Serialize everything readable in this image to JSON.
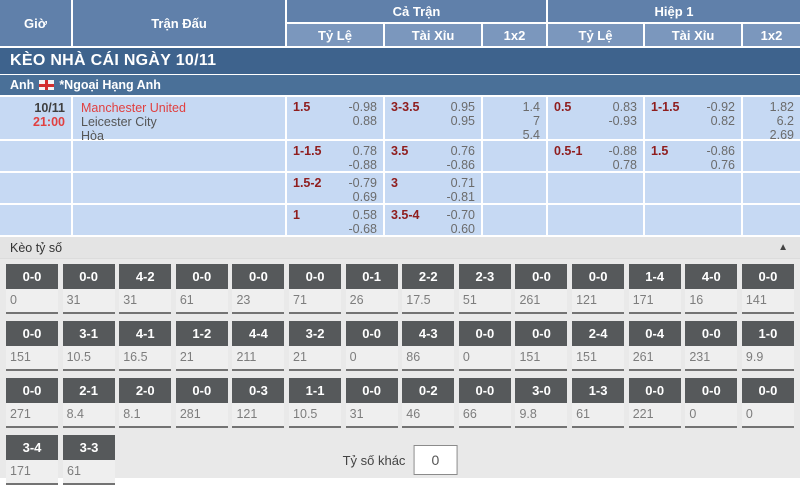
{
  "colors": {
    "accent_red": "#e14040",
    "handicap_maroon": "#8f1d1d",
    "header_blue": "#6080aa",
    "row_blue": "#c6d9f3",
    "banner_blue": "#3e638d",
    "tile_dark": "#56595b"
  },
  "odds_board": {
    "columns": {
      "time": "Giờ",
      "match": "Trận Đấu",
      "full_time": "Cả Trận",
      "first_half": "Hiệp 1",
      "sub_hdp": "Tỷ Lệ",
      "sub_ou": "Tài Xỉu",
      "sub_1x2": "1x2"
    },
    "day_banner": "KÈO NHÀ CÁI NGÀY 10/11",
    "league_bar": {
      "country": "Anh",
      "league": "*Ngoại Hạng Anh"
    },
    "match": {
      "date": "10/11",
      "kickoff": "21:00",
      "home": "Manchester United",
      "away": "Leicester City",
      "draw_label": "Hòa"
    },
    "rows": [
      {
        "ft_hdp_line": "1.5",
        "ft_hdp_odds": [
          "-0.98",
          "0.88"
        ],
        "ft_ou_line": "3-3.5",
        "ft_ou_odds": [
          "0.95",
          "0.95"
        ],
        "ft_1x2": [
          "1.4",
          "7",
          "5.4"
        ],
        "h1_hdp_line": "0.5",
        "h1_hdp_odds": [
          "0.83",
          "-0.93"
        ],
        "h1_ou_line": "1-1.5",
        "h1_ou_odds": [
          "-0.92",
          "0.82"
        ],
        "h1_1x2": [
          "1.82",
          "6.2",
          "2.69"
        ]
      },
      {
        "ft_hdp_line": "1-1.5",
        "ft_hdp_odds": [
          "0.78",
          "-0.88"
        ],
        "ft_ou_line": "3.5",
        "ft_ou_odds": [
          "0.76",
          "-0.86"
        ],
        "ft_1x2": [],
        "h1_hdp_line": "0.5-1",
        "h1_hdp_odds": [
          "-0.88",
          "0.78"
        ],
        "h1_ou_line": "1.5",
        "h1_ou_odds": [
          "-0.86",
          "0.76"
        ],
        "h1_1x2": []
      },
      {
        "ft_hdp_line": "1.5-2",
        "ft_hdp_odds": [
          "-0.79",
          "0.69"
        ],
        "ft_ou_line": "3",
        "ft_ou_odds": [
          "0.71",
          "-0.81"
        ],
        "ft_1x2": [],
        "h1_hdp_line": "",
        "h1_hdp_odds": [],
        "h1_ou_line": "",
        "h1_ou_odds": [],
        "h1_1x2": []
      },
      {
        "ft_hdp_line": "1",
        "ft_hdp_odds": [
          "0.58",
          "-0.68"
        ],
        "ft_ou_line": "3.5-4",
        "ft_ou_odds": [
          "-0.70",
          "0.60"
        ],
        "ft_1x2": [],
        "h1_hdp_line": "",
        "h1_hdp_odds": [],
        "h1_ou_line": "",
        "h1_ou_odds": [],
        "h1_1x2": []
      }
    ]
  },
  "score_section": {
    "title": "Kèo tỷ số",
    "collapse_icon": "▲",
    "other_score_label": "Tỷ số khác",
    "other_score_value": "0",
    "rows": [
      [
        {
          "score": "0-0",
          "value": "0"
        },
        {
          "score": "0-0",
          "value": "31"
        },
        {
          "score": "4-2",
          "value": "31"
        },
        {
          "score": "0-0",
          "value": "61"
        },
        {
          "score": "0-0",
          "value": "23"
        },
        {
          "score": "0-0",
          "value": "71"
        },
        {
          "score": "0-1",
          "value": "26"
        },
        {
          "score": "2-2",
          "value": "17.5"
        },
        {
          "score": "2-3",
          "value": "51"
        },
        {
          "score": "0-0",
          "value": "261"
        },
        {
          "score": "0-0",
          "value": "121"
        },
        {
          "score": "1-4",
          "value": "171"
        },
        {
          "score": "4-0",
          "value": "16"
        },
        {
          "score": "0-0",
          "value": "141"
        }
      ],
      [
        {
          "score": "0-0",
          "value": "151"
        },
        {
          "score": "3-1",
          "value": "10.5"
        },
        {
          "score": "4-1",
          "value": "16.5"
        },
        {
          "score": "1-2",
          "value": "21"
        },
        {
          "score": "4-4",
          "value": "211"
        },
        {
          "score": "3-2",
          "value": "21"
        },
        {
          "score": "0-0",
          "value": "0"
        },
        {
          "score": "4-3",
          "value": "86"
        },
        {
          "score": "0-0",
          "value": "0"
        },
        {
          "score": "0-0",
          "value": "151"
        },
        {
          "score": "2-4",
          "value": "151"
        },
        {
          "score": "0-4",
          "value": "261"
        },
        {
          "score": "0-0",
          "value": "231"
        },
        {
          "score": "1-0",
          "value": "9.9"
        }
      ],
      [
        {
          "score": "0-0",
          "value": "271"
        },
        {
          "score": "2-1",
          "value": "8.4"
        },
        {
          "score": "2-0",
          "value": "8.1"
        },
        {
          "score": "0-0",
          "value": "281"
        },
        {
          "score": "0-3",
          "value": "121"
        },
        {
          "score": "1-1",
          "value": "10.5"
        },
        {
          "score": "0-0",
          "value": "31"
        },
        {
          "score": "0-2",
          "value": "46"
        },
        {
          "score": "0-0",
          "value": "66"
        },
        {
          "score": "3-0",
          "value": "9.8"
        },
        {
          "score": "1-3",
          "value": "61"
        },
        {
          "score": "0-0",
          "value": "221"
        },
        {
          "score": "0-0",
          "value": "0"
        },
        {
          "score": "0-0",
          "value": "0"
        }
      ],
      [
        {
          "score": "3-4",
          "value": "171"
        },
        {
          "score": "3-3",
          "value": "61"
        }
      ]
    ]
  }
}
